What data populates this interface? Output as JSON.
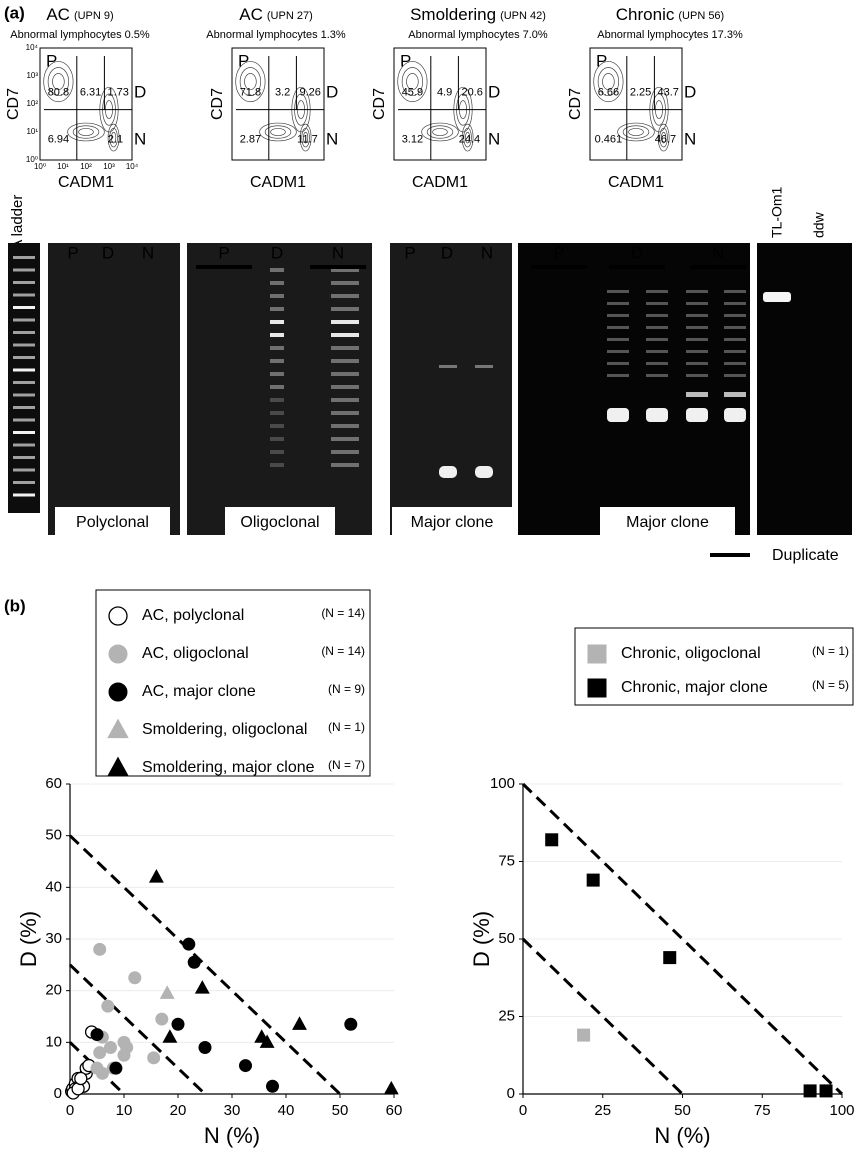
{
  "panel_a": {
    "label": "(a)",
    "flow_plots": [
      {
        "title": "AC",
        "upn": "(UPN 9)",
        "abnormal": "Abnormal lymphocytes 0.5%",
        "y_axis": "CD7",
        "x_axis": "CADM1",
        "gate_p": "P",
        "gate_d": "D",
        "gate_n": "N",
        "top": [
          80.8,
          6.31,
          1.73
        ],
        "bottom": [
          6.94,
          2.1
        ],
        "yticks": [
          "10⁴",
          "10³",
          "10²",
          "10¹",
          "10⁰"
        ],
        "xticks": [
          "10⁰",
          "10¹",
          "10²",
          "10³",
          "10⁴"
        ]
      },
      {
        "title": "AC",
        "upn": "(UPN 27)",
        "abnormal": "Abnormal lymphocytes 1.3%",
        "y_axis": "CD7",
        "x_axis": "CADM1",
        "gate_p": "P",
        "gate_d": "D",
        "gate_n": "N",
        "top": [
          71.8,
          3.2,
          9.26
        ],
        "bottom": [
          2.87,
          11.7
        ]
      },
      {
        "title": "Smoldering",
        "upn": "(UPN 42)",
        "abnormal": "Abnormal lymphocytes 7.0%",
        "y_axis": "CD7",
        "x_axis": "CADM1",
        "gate_p": "P",
        "gate_d": "D",
        "gate_n": "N",
        "top": [
          45.9,
          4.9,
          20.6
        ],
        "bottom": [
          3.12,
          24.4
        ]
      },
      {
        "title": "Chronic",
        "upn": "(UPN 56)",
        "abnormal": "Abnormal lymphocytes 17.3%",
        "y_axis": "CD7",
        "x_axis": "CADM1",
        "gate_p": "P",
        "gate_d": "D",
        "gate_n": "N",
        "top": [
          6.66,
          2.25,
          43.7
        ],
        "bottom": [
          0.461,
          46.7
        ]
      }
    ],
    "gel": {
      "ladder_label": "DNA ladder",
      "groups": [
        {
          "lanes": [
            "P",
            "D",
            "N"
          ],
          "caption": "Polyclonal"
        },
        {
          "lanes": [
            "P",
            "D",
            "N"
          ],
          "caption": "Oligoclonal"
        },
        {
          "lanes": [
            "P",
            "D",
            "N"
          ],
          "caption": "Major clone"
        },
        {
          "lanes": [
            "P",
            "D",
            "N"
          ],
          "caption": "Major clone"
        },
        {
          "lanes": [
            "TL-Om1",
            "ddw"
          ]
        }
      ],
      "duplicate": "Duplicate"
    }
  },
  "panel_b": {
    "label": "(b)"
  },
  "chart_data": [
    {
      "type": "scatter",
      "x_label": "N (%)",
      "y_label": "D (%)",
      "xlim": [
        0,
        60
      ],
      "ylim": [
        0,
        60
      ],
      "xticks": [
        0,
        10,
        20,
        30,
        40,
        50,
        60
      ],
      "yticks": [
        0,
        10,
        20,
        30,
        40,
        50,
        60
      ],
      "grid": true,
      "diagonals": [
        50,
        25,
        10
      ],
      "series": [
        {
          "name": "AC, polyclonal",
          "n_label": "(N = 14)",
          "marker": "circle",
          "filled": false,
          "color": "#000000",
          "x": [
            0.3,
            0.5,
            1,
            1.5,
            1,
            2,
            2.5,
            3,
            3,
            3.5,
            4,
            0.6,
            1.5,
            2
          ],
          "values": [
            0.5,
            1,
            2,
            3,
            1,
            2,
            1.5,
            4,
            5,
            5.5,
            12,
            0.2,
            1,
            3
          ]
        },
        {
          "name": "AC, oligoclonal",
          "n_label": "(N = 14)",
          "marker": "circle",
          "filled": true,
          "color": "#b3b3b3",
          "x": [
            5.5,
            12,
            7,
            6,
            5.5,
            7.5,
            10,
            10.5,
            8,
            6,
            10,
            17,
            15.5,
            5
          ],
          "values": [
            28,
            22.5,
            17,
            11,
            8,
            9,
            10,
            9,
            5,
            4,
            7.5,
            14.5,
            7,
            5
          ]
        },
        {
          "name": "AC, major clone",
          "n_label": "(N = 9)",
          "marker": "circle",
          "filled": true,
          "color": "#000000",
          "x": [
            5,
            8.5,
            22,
            23,
            20,
            25,
            32.5,
            37.5,
            52
          ],
          "values": [
            11.5,
            5,
            29,
            25.5,
            13.5,
            9,
            5.5,
            1.5,
            13.5
          ]
        },
        {
          "name": "Smoldering, oligoclonal",
          "n_label": "(N = 1)",
          "marker": "triangle",
          "filled": true,
          "color": "#b3b3b3",
          "x": [
            18
          ],
          "values": [
            19.5
          ]
        },
        {
          "name": "Smoldering, major clone",
          "n_label": "(N = 7)",
          "marker": "triangle",
          "filled": true,
          "color": "#000000",
          "x": [
            16,
            24.5,
            18.5,
            35.5,
            36.5,
            42.5,
            59.5
          ],
          "values": [
            42,
            20.5,
            11,
            11,
            10,
            13.5,
            1
          ]
        }
      ]
    },
    {
      "type": "scatter",
      "x_label": "N (%)",
      "y_label": "D (%)",
      "xlim": [
        0,
        100
      ],
      "ylim": [
        0,
        100
      ],
      "xticks": [
        0,
        25,
        50,
        75,
        100
      ],
      "yticks": [
        0,
        25,
        50,
        75,
        100
      ],
      "grid": true,
      "diagonals": [
        100,
        50
      ],
      "series": [
        {
          "name": "Chronic, oligoclonal",
          "n_label": "(N = 1)",
          "marker": "square",
          "filled": true,
          "color": "#b3b3b3",
          "x": [
            19
          ],
          "values": [
            19
          ]
        },
        {
          "name": "Chronic, major clone",
          "n_label": "(N = 5)",
          "marker": "square",
          "filled": true,
          "color": "#000000",
          "x": [
            9,
            22,
            46,
            90,
            95
          ],
          "values": [
            82,
            69,
            44,
            1,
            1
          ]
        }
      ]
    }
  ]
}
